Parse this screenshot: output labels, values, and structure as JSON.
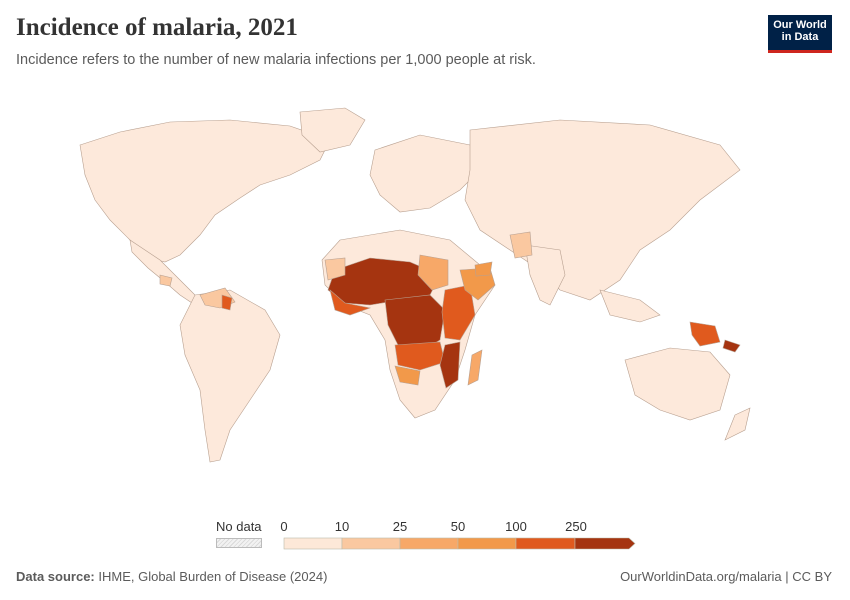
{
  "header": {
    "title": "Incidence of malaria, 2021",
    "subtitle": "Incidence refers to the number of new malaria infections per 1,000 people at risk."
  },
  "logo": {
    "line1": "Our World",
    "line2": "in Data"
  },
  "legend": {
    "no_data_label": "No data",
    "ticks": [
      "0",
      "10",
      "25",
      "50",
      "100",
      "250"
    ],
    "bin_colors": [
      "#fde8d8",
      "#fac8a0",
      "#f7a868",
      "#f2994a",
      "#e05a1e",
      "#a53410"
    ],
    "no_data_color": "#e8e8e8"
  },
  "footer": {
    "source_label": "Data source:",
    "source_text": "IHME, Global Burden of Disease (2024)",
    "url": "OurWorldinData.org/malaria | CC BY"
  },
  "map": {
    "base_color": "#fde9db",
    "border_color": "#b09080"
  }
}
